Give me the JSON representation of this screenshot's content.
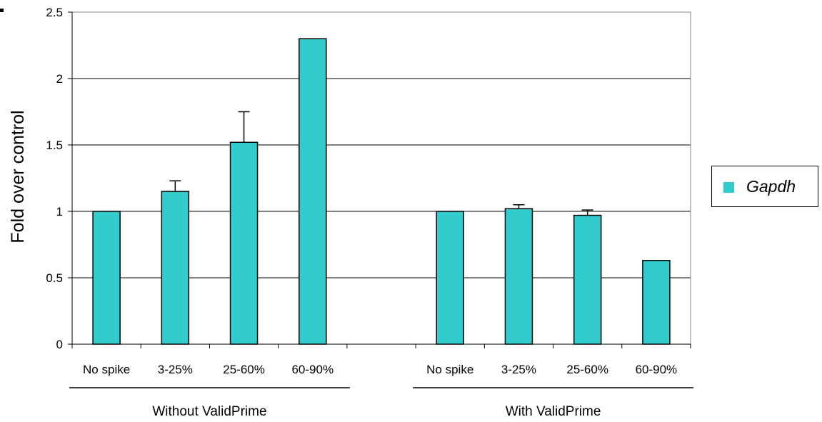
{
  "chart_data": {
    "type": "bar",
    "ylabel": "Fold over control",
    "ylim": [
      0,
      2.5
    ],
    "yticks": [
      "0",
      "0.5",
      "1",
      "1.5",
      "2",
      "2.5"
    ],
    "grid": true,
    "legend_position": "right",
    "color": "#33CCCC",
    "groups": [
      {
        "label": "Without ValidPrime",
        "categories": [
          "No spike",
          "3-25%",
          "25-60%",
          "60-90%"
        ],
        "values": [
          1.0,
          1.15,
          1.52,
          2.3
        ],
        "errors": [
          0,
          0.08,
          0.23,
          0
        ]
      },
      {
        "label": "With ValidPrime",
        "categories": [
          "No spike",
          "3-25%",
          "25-60%",
          "60-90%"
        ],
        "values": [
          1.0,
          1.02,
          0.97,
          0.63
        ],
        "errors": [
          0,
          0.03,
          0.04,
          0
        ]
      }
    ],
    "series": [
      {
        "name": "Gapdh"
      }
    ]
  }
}
